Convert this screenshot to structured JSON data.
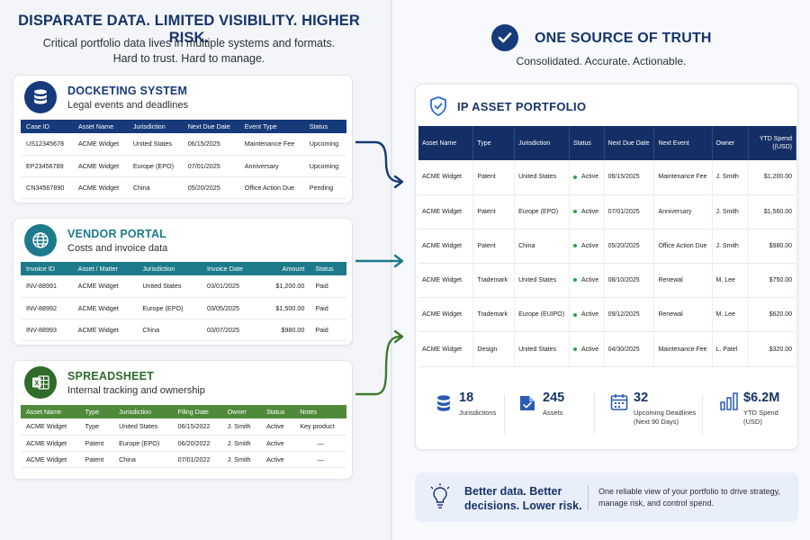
{
  "left": {
    "headline": "DISPARATE DATA. LIMITED VISIBILITY. HIGHER RISK.",
    "subline_1": "Critical portfolio data lives in multiple systems and formats.",
    "subline_2": "Hard to trust. Hard to manage.",
    "docketing": {
      "title": "DOCKETING SYSTEM",
      "subtitle": "Legal events and deadlines",
      "accent": "#163a7a",
      "columns": [
        "Case ID",
        "Asset Name",
        "Jurisdiction",
        "Next Due Date",
        "Event Type",
        "Status"
      ],
      "rows": [
        [
          "US12345678",
          "ACME Widget",
          "United States",
          "06/15/2025",
          "Maintenance Fee",
          "Upcoming"
        ],
        [
          "EP23456789",
          "ACME Widget",
          "Europe (EPO)",
          "07/01/2025",
          "Anniversary",
          "Upcoming"
        ],
        [
          "CN34567890",
          "ACME Widget",
          "China",
          "05/20/2025",
          "Office Action Due",
          "Pending"
        ]
      ]
    },
    "vendor": {
      "title": "VENDOR PORTAL",
      "subtitle": "Costs and invoice data",
      "accent": "#1c7a8a",
      "columns": [
        "Invoice ID",
        "Asset / Matter",
        "Jurisdiction",
        "Invoice Date",
        "Amount",
        "Status"
      ],
      "rows": [
        [
          "INV-88991",
          "ACME Widget",
          "United States",
          "03/01/2025",
          "$1,200.00",
          "Paid"
        ],
        [
          "INV-88992",
          "ACME Widget",
          "Europe (EPO)",
          "03/05/2025",
          "$1,500.00",
          "Paid"
        ],
        [
          "INV-88993",
          "ACME Widget",
          "China",
          "03/07/2025",
          "$980.00",
          "Paid"
        ]
      ]
    },
    "spreadsheet": {
      "title": "SPREADSHEET",
      "subtitle": "Internal tracking and ownership",
      "accent": "#3f7a2f",
      "columns": [
        "Asset Name",
        "Type",
        "Jurisdiction",
        "Filing Date",
        "Owner",
        "Status",
        "Notes"
      ],
      "rows": [
        [
          "ACME Widget",
          "Type",
          "United States",
          "06/15/2022",
          "J. Smith",
          "Active",
          "Key product"
        ],
        [
          "ACME Widget",
          "Patent",
          "Europe (EPO)",
          "06/20/2022",
          "J. Smith",
          "Active",
          "—"
        ],
        [
          "ACME Widget",
          "Patent",
          "China",
          "07/01/2022",
          "J. Smith",
          "Active",
          "—"
        ]
      ]
    }
  },
  "right": {
    "title": "ONE SOURCE OF TRUTH",
    "subtitle": "Consolidated. Accurate. Actionable.",
    "portfolio": {
      "title": "IP ASSET PORTFOLIO",
      "columns": [
        "Asset Name",
        "Type",
        "Jurisdiction",
        "Status",
        "Next Due Date",
        "Next Event",
        "Owner",
        "YTD Spend ((USD)"
      ],
      "rows": [
        [
          "ACME Widget",
          "Patent",
          "United States",
          "Active",
          "06/15/2025",
          "Maintenance Fee",
          "J. Smith",
          "$1,200.00"
        ],
        [
          "ACME Widget",
          "Patent",
          "Europe (EPO)",
          "Active",
          "07/01/2025",
          "Anniversary",
          "J. Smith",
          "$1,560.00"
        ],
        [
          "ACME Widget",
          "Patent",
          "China",
          "Active",
          "05/20/2025",
          "Office Action Due",
          "J. Smith",
          "$980.00"
        ],
        [
          "ACME Widget",
          "Trademark",
          "United States",
          "Active",
          "08/10/2025",
          "Renewal",
          "M. Lee",
          "$750.00"
        ],
        [
          "ACME Widget",
          "Trademark",
          "Europe (EUIPO)",
          "Active",
          "09/12/2025",
          "Renewal",
          "M. Lee",
          "$620.00"
        ],
        [
          "ACME Widget",
          "Design",
          "United States",
          "Active",
          "04/30/2025",
          "Maintenance Fee",
          "L. Patel",
          "$320.00"
        ]
      ],
      "stats": [
        {
          "value": "18",
          "label_1": "Jurisdictions",
          "label_2": ""
        },
        {
          "value": "245",
          "label_1": "Assets",
          "label_2": ""
        },
        {
          "value": "32",
          "label_1": "Upcoming Deadlines",
          "label_2": "(Next 90 Days)"
        },
        {
          "value": "$6.2M",
          "label_1": "YTD Spend",
          "label_2": "(USD)"
        }
      ]
    },
    "banner": {
      "bold_1": "Better data. Better",
      "bold_2": "decisions. Lower risk.",
      "text_1": "One reliable view of your portfolio to drive strategy,",
      "text_2": "manage risk, and control spend."
    }
  }
}
